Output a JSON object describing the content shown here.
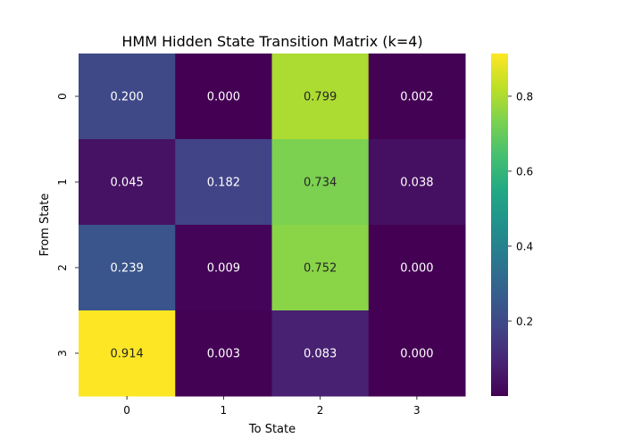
{
  "chart_data": {
    "type": "heatmap",
    "title": "HMM Hidden State Transition Matrix (k=4)",
    "xlabel": "To State",
    "ylabel": "From State",
    "x_categories": [
      "0",
      "1",
      "2",
      "3"
    ],
    "y_categories": [
      "0",
      "1",
      "2",
      "3"
    ],
    "values": [
      [
        0.2,
        0.0,
        0.799,
        0.002
      ],
      [
        0.045,
        0.182,
        0.734,
        0.038
      ],
      [
        0.239,
        0.009,
        0.752,
        0.0
      ],
      [
        0.914,
        0.003,
        0.083,
        0.0
      ]
    ],
    "value_format": "0.000",
    "colormap": "viridis",
    "colorbar": {
      "range": [
        0.0,
        0.914
      ],
      "ticks": [
        0.2,
        0.4,
        0.6,
        0.8
      ],
      "tick_labels": [
        "0.2",
        "0.4",
        "0.6",
        "0.8"
      ]
    },
    "legend": "colorbar-right",
    "grid": false
  }
}
